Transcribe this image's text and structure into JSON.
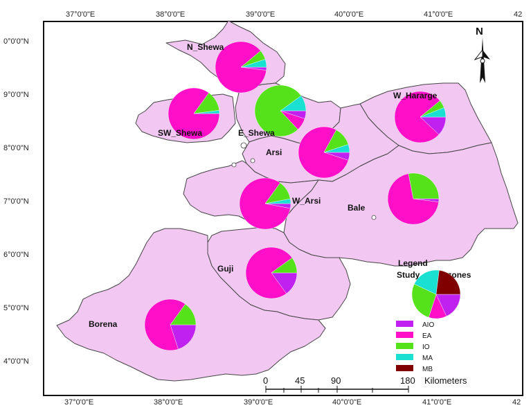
{
  "colors": {
    "AIO": "#c020f0",
    "EA": "#ff10c8",
    "IO": "#55e21a",
    "MA": "#19e0d0",
    "MB": "#800000",
    "land": "#f2c8f2",
    "border": "#444444"
  },
  "top_axis": [
    "37°0'0\"E",
    "38°0'0\"E",
    "39°0'0\"E",
    "40°0'0\"E",
    "41°0'0\"E",
    "42"
  ],
  "bottom_axis": [
    "37°0'0\"E",
    "38°0'0\"E",
    "39°0'0\"E",
    "40°0'0\"E",
    "41°0'0\"E",
    "42"
  ],
  "left_axis": [
    "0°0'0\"N",
    "9°0'0\"N",
    "8°0'0\"N",
    "7°0'0\"N",
    "6°0'0\"N",
    "5°0'0\"N",
    "4°0'0\"N"
  ],
  "north_label": "N",
  "zones": [
    {
      "name": "N_Shewa",
      "AIO": 2,
      "EA": 87,
      "IO": 6,
      "MA": 5,
      "MB": 0
    },
    {
      "name": "SW_Shewa",
      "AIO": 0,
      "EA": 85,
      "IO": 13,
      "MA": 2,
      "MB": 0
    },
    {
      "name": "E_Shewa",
      "AIO": 5,
      "EA": 8,
      "IO": 77,
      "MA": 10,
      "MB": 0
    },
    {
      "name": "W_Hararge",
      "AIO": 12,
      "EA": 77,
      "IO": 5,
      "MA": 6,
      "MB": 0
    },
    {
      "name": "Arsi",
      "AIO": 5,
      "EA": 78,
      "IO": 12,
      "MA": 5,
      "MB": 0
    },
    {
      "name": "W_Arsi",
      "AIO": 3,
      "EA": 82,
      "IO": 12,
      "MA": 3,
      "MB": 0
    },
    {
      "name": "Bale",
      "AIO": 2,
      "EA": 70,
      "IO": 28,
      "MA": 0,
      "MB": 0
    },
    {
      "name": "Guji",
      "AIO": 15,
      "EA": 75,
      "IO": 10,
      "MA": 0,
      "MB": 0
    },
    {
      "name": "Borena",
      "AIO": 20,
      "EA": 65,
      "IO": 15,
      "MA": 0,
      "MB": 0
    }
  ],
  "legend": {
    "title": "Legend",
    "subtitle": "Study_Area_zones",
    "sample": {
      "AIO": 18,
      "EA": 12,
      "IO": 27,
      "MA": 20,
      "MB": 23
    },
    "items": [
      {
        "key": "AIO",
        "label": "AIO"
      },
      {
        "key": "EA",
        "label": "EA"
      },
      {
        "key": "IO",
        "label": "IO"
      },
      {
        "key": "MA",
        "label": "MA"
      },
      {
        "key": "MB",
        "label": "MB"
      }
    ]
  },
  "scale": {
    "ticks": [
      "0",
      "45",
      "90",
      "180"
    ],
    "unit": "Kilometers"
  }
}
